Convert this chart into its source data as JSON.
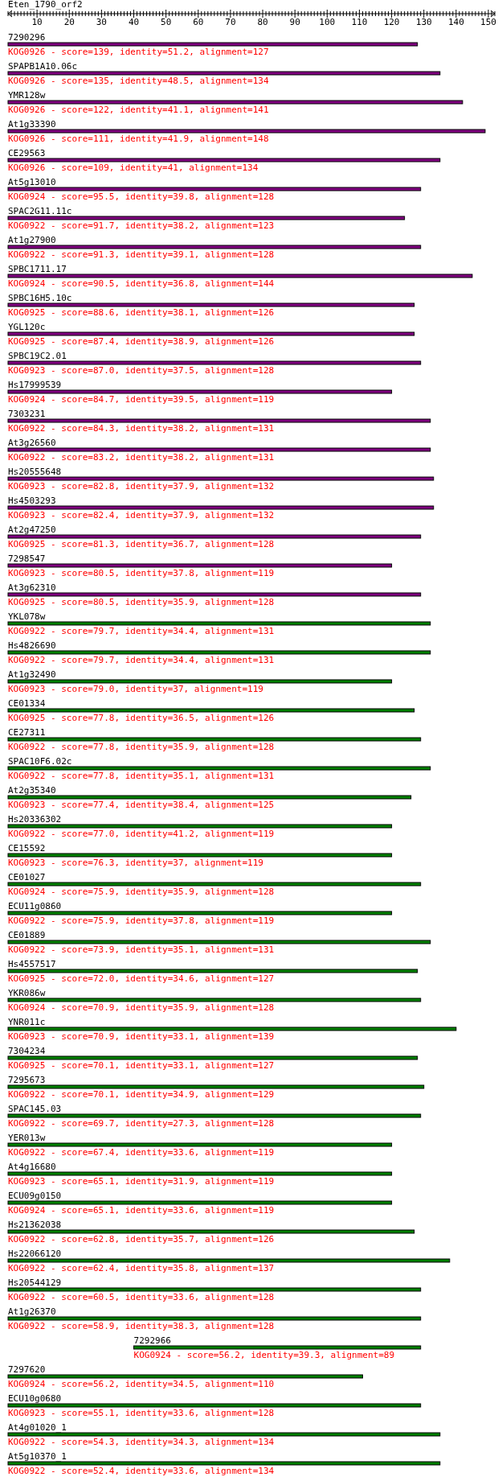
{
  "chart_data": {
    "type": "bar",
    "orientation": "horizontal",
    "title": "Eten_1790_orf2",
    "categories": [
      "7290296",
      "SPAPB1A10.06c",
      "YMR128w",
      "At1g33390",
      "CE29563",
      "At5g13010",
      "SPAC2G11.11c",
      "At1g27900",
      "SPBC1711.17",
      "SPBC16H5.10c",
      "YGL120c",
      "SPBC19C2.01",
      "Hs17999539",
      "7303231",
      "At3g26560",
      "Hs20555648",
      "Hs4503293",
      "At2g47250",
      "7298547",
      "At3g62310",
      "YKL078w",
      "Hs4826690",
      "At1g32490",
      "CE01334",
      "CE27311",
      "SPAC10F6.02c",
      "At2g35340",
      "Hs20336302",
      "CE15592",
      "CE01027",
      "ECU11g0860",
      "CE01889",
      "Hs4557517",
      "YKR086w",
      "YNR011c",
      "7304234",
      "7295673",
      "SPAC145.03",
      "YER013w",
      "At4g16680",
      "ECU09g0150",
      "Hs21362038",
      "Hs22066120",
      "Hs20544129",
      "At1g26370",
      "7292966",
      "7297620",
      "ECU10g0680",
      "At4g01020_1",
      "At5g10370_1"
    ],
    "base": [
      1,
      1,
      1,
      1,
      1,
      1,
      1,
      1,
      1,
      1,
      1,
      1,
      1,
      1,
      1,
      1,
      1,
      1,
      1,
      1,
      1,
      1,
      1,
      1,
      1,
      1,
      1,
      1,
      1,
      1,
      1,
      1,
      1,
      1,
      1,
      1,
      1,
      1,
      1,
      1,
      1,
      1,
      1,
      1,
      1,
      40,
      1,
      1,
      1,
      1
    ],
    "values": [
      127,
      134,
      141,
      148,
      134,
      128,
      123,
      128,
      144,
      126,
      126,
      128,
      119,
      131,
      131,
      132,
      132,
      128,
      119,
      128,
      131,
      131,
      119,
      126,
      128,
      131,
      125,
      119,
      119,
      128,
      119,
      131,
      127,
      128,
      139,
      127,
      129,
      128,
      119,
      119,
      119,
      126,
      137,
      128,
      128,
      89,
      110,
      128,
      134,
      134
    ],
    "colors": [
      "#800080",
      "#800080",
      "#800080",
      "#800080",
      "#800080",
      "#800080",
      "#800080",
      "#800080",
      "#800080",
      "#800080",
      "#800080",
      "#800080",
      "#800080",
      "#800080",
      "#800080",
      "#800080",
      "#800080",
      "#800080",
      "#800080",
      "#800080",
      "#008000",
      "#008000",
      "#008000",
      "#008000",
      "#008000",
      "#008000",
      "#008000",
      "#008000",
      "#008000",
      "#008000",
      "#008000",
      "#008000",
      "#008000",
      "#008000",
      "#008000",
      "#008000",
      "#008000",
      "#008000",
      "#008000",
      "#008000",
      "#008000",
      "#008000",
      "#008000",
      "#008000",
      "#008000",
      "#008000",
      "#008000",
      "#008000",
      "#008000",
      "#008000"
    ],
    "xlim": [
      1,
      152
    ],
    "xticks": [
      {
        "value": 1,
        "label": null
      },
      {
        "value": 2,
        "label": null
      },
      {
        "value": 3,
        "label": null
      },
      {
        "value": 4,
        "label": null
      },
      {
        "value": 5,
        "label": null
      },
      {
        "value": 6,
        "label": null
      },
      {
        "value": 7,
        "label": null
      },
      {
        "value": 8,
        "label": null
      },
      {
        "value": 9,
        "label": null
      },
      10,
      {
        "value": 11,
        "label": null
      },
      {
        "value": 12,
        "label": null
      },
      {
        "value": 13,
        "label": null
      },
      {
        "value": 14,
        "label": null
      },
      {
        "value": 15,
        "label": null
      },
      {
        "value": 16,
        "label": null
      },
      {
        "value": 17,
        "label": null
      },
      {
        "value": 18,
        "label": null
      },
      {
        "value": 19,
        "label": null
      },
      20,
      {
        "value": 21,
        "label": null
      },
      {
        "value": 22,
        "label": null
      },
      {
        "value": 23,
        "label": null
      },
      {
        "value": 24,
        "label": null
      },
      {
        "value": 25,
        "label": null
      },
      {
        "value": 26,
        "label": null
      },
      {
        "value": 27,
        "label": null
      },
      {
        "value": 28,
        "label": null
      },
      {
        "value": 29,
        "label": null
      },
      30,
      {
        "value": 31,
        "label": null
      },
      {
        "value": 32,
        "label": null
      },
      {
        "value": 33,
        "label": null
      },
      {
        "value": 34,
        "label": null
      },
      {
        "value": 35,
        "label": null
      },
      {
        "value": 36,
        "label": null
      },
      {
        "value": 37,
        "label": null
      },
      {
        "value": 38,
        "label": null
      },
      {
        "value": 39,
        "label": null
      },
      40,
      {
        "value": 41,
        "label": null
      },
      {
        "value": 42,
        "label": null
      },
      {
        "value": 43,
        "label": null
      },
      {
        "value": 44,
        "label": null
      },
      {
        "value": 45,
        "label": null
      },
      {
        "value": 46,
        "label": null
      },
      {
        "value": 47,
        "label": null
      },
      {
        "value": 48,
        "label": null
      },
      {
        "value": 49,
        "label": null
      },
      50,
      {
        "value": 51,
        "label": null
      },
      {
        "value": 52,
        "label": null
      },
      {
        "value": 53,
        "label": null
      },
      {
        "value": 54,
        "label": null
      },
      {
        "value": 55,
        "label": null
      },
      {
        "value": 56,
        "label": null
      },
      {
        "value": 57,
        "label": null
      },
      {
        "value": 58,
        "label": null
      },
      {
        "value": 59,
        "label": null
      },
      60,
      {
        "value": 61,
        "label": null
      },
      {
        "value": 62,
        "label": null
      },
      {
        "value": 63,
        "label": null
      },
      {
        "value": 64,
        "label": null
      },
      {
        "value": 65,
        "label": null
      },
      {
        "value": 66,
        "label": null
      },
      {
        "value": 67,
        "label": null
      },
      {
        "value": 68,
        "label": null
      },
      {
        "value": 69,
        "label": null
      },
      70,
      {
        "value": 71,
        "label": null
      },
      {
        "value": 72,
        "label": null
      },
      {
        "value": 73,
        "label": null
      },
      {
        "value": 74,
        "label": null
      },
      {
        "value": 75,
        "label": null
      },
      {
        "value": 76,
        "label": null
      },
      {
        "value": 77,
        "label": null
      },
      {
        "value": 78,
        "label": null
      },
      {
        "value": 79,
        "label": null
      },
      80,
      {
        "value": 81,
        "label": null
      },
      {
        "value": 82,
        "label": null
      },
      {
        "value": 83,
        "label": null
      },
      {
        "value": 84,
        "label": null
      },
      {
        "value": 85,
        "label": null
      },
      {
        "value": 86,
        "label": null
      },
      {
        "value": 87,
        "label": null
      },
      {
        "value": 88,
        "label": null
      },
      {
        "value": 89,
        "label": null
      },
      90,
      {
        "value": 91,
        "label": null
      },
      {
        "value": 92,
        "label": null
      },
      {
        "value": 93,
        "label": null
      },
      {
        "value": 94,
        "label": null
      },
      {
        "value": 95,
        "label": null
      },
      {
        "value": 96,
        "label": null
      },
      {
        "value": 97,
        "label": null
      },
      {
        "value": 98,
        "label": null
      },
      {
        "value": 99,
        "label": null
      },
      100,
      {
        "value": 101,
        "label": null
      },
      {
        "value": 102,
        "label": null
      },
      {
        "value": 103,
        "label": null
      },
      {
        "value": 104,
        "label": null
      },
      {
        "value": 105,
        "label": null
      },
      {
        "value": 106,
        "label": null
      },
      {
        "value": 107,
        "label": null
      },
      {
        "value": 108,
        "label": null
      },
      {
        "value": 109,
        "label": null
      },
      110,
      {
        "value": 111,
        "label": null
      },
      {
        "value": 112,
        "label": null
      },
      {
        "value": 113,
        "label": null
      },
      {
        "value": 114,
        "label": null
      },
      {
        "value": 115,
        "label": null
      },
      {
        "value": 116,
        "label": null
      },
      {
        "value": 117,
        "label": null
      },
      {
        "value": 118,
        "label": null
      },
      {
        "value": 119,
        "label": null
      },
      120,
      {
        "value": 121,
        "label": null
      },
      {
        "value": 122,
        "label": null
      },
      {
        "value": 123,
        "label": null
      },
      {
        "value": 124,
        "label": null
      },
      {
        "value": 125,
        "label": null
      },
      {
        "value": 126,
        "label": null
      },
      {
        "value": 127,
        "label": null
      },
      {
        "value": 128,
        "label": null
      },
      {
        "value": 129,
        "label": null
      },
      130,
      {
        "value": 131,
        "label": null
      },
      {
        "value": 132,
        "label": null
      },
      {
        "value": 133,
        "label": null
      },
      {
        "value": 134,
        "label": null
      },
      {
        "value": 135,
        "label": null
      },
      {
        "value": 136,
        "label": null
      },
      {
        "value": 137,
        "label": null
      },
      {
        "value": 138,
        "label": null
      },
      {
        "value": 139,
        "label": null
      },
      140,
      {
        "value": 141,
        "label": null
      },
      {
        "value": 142,
        "label": null
      },
      {
        "value": 143,
        "label": null
      },
      {
        "value": 144,
        "label": null
      },
      {
        "value": 145,
        "label": null
      },
      {
        "value": 146,
        "label": null
      },
      {
        "value": 147,
        "label": null
      },
      {
        "value": 148,
        "label": null
      },
      {
        "value": 149,
        "label": null
      },
      150,
      {
        "value": 151,
        "label": null
      },
      {
        "value": 152,
        "label": null
      }
    ],
    "annotations": [
      "KOG0926 - score=139, identity=51.2, alignment=127",
      "KOG0926 - score=135, identity=48.5, alignment=134",
      "KOG0926 - score=122, identity=41.1, alignment=141",
      "KOG0926 - score=111, identity=41.9, alignment=148",
      "KOG0926 - score=109, identity=41, alignment=134",
      "KOG0924 - score=95.5, identity=39.8, alignment=128",
      "KOG0922 - score=91.7, identity=38.2, alignment=123",
      "KOG0922 - score=91.3, identity=39.1, alignment=128",
      "KOG0924 - score=90.5, identity=36.8, alignment=144",
      "KOG0925 - score=88.6, identity=38.1, alignment=126",
      "KOG0925 - score=87.4, identity=38.9, alignment=126",
      "KOG0923 - score=87.0, identity=37.5, alignment=128",
      "KOG0924 - score=84.7, identity=39.5, alignment=119",
      "KOG0922 - score=84.3, identity=38.2, alignment=131",
      "KOG0922 - score=83.2, identity=38.2, alignment=131",
      "KOG0923 - score=82.8, identity=37.9, alignment=132",
      "KOG0923 - score=82.4, identity=37.9, alignment=132",
      "KOG0925 - score=81.3, identity=36.7, alignment=128",
      "KOG0923 - score=80.5, identity=37.8, alignment=119",
      "KOG0925 - score=80.5, identity=35.9, alignment=128",
      "KOG0922 - score=79.7, identity=34.4, alignment=131",
      "KOG0922 - score=79.7, identity=34.4, alignment=131",
      "KOG0923 - score=79.0, identity=37, alignment=119",
      "KOG0925 - score=77.8, identity=36.5, alignment=126",
      "KOG0922 - score=77.8, identity=35.9, alignment=128",
      "KOG0922 - score=77.8, identity=35.1, alignment=131",
      "KOG0923 - score=77.4, identity=38.4, alignment=125",
      "KOG0922 - score=77.0, identity=41.2, alignment=119",
      "KOG0923 - score=76.3, identity=37, alignment=119",
      "KOG0924 - score=75.9, identity=35.9, alignment=128",
      "KOG0922 - score=75.9, identity=37.8, alignment=119",
      "KOG0922 - score=73.9, identity=35.1, alignment=131",
      "KOG0925 - score=72.0, identity=34.6, alignment=127",
      "KOG0924 - score=70.9, identity=35.9, alignment=128",
      "KOG0923 - score=70.9, identity=33.1, alignment=139",
      "KOG0925 - score=70.1, identity=33.1, alignment=127",
      "KOG0922 - score=70.1, identity=34.9, alignment=129",
      "KOG0922 - score=69.7, identity=27.3, alignment=128",
      "KOG0922 - score=67.4, identity=33.6, alignment=119",
      "KOG0923 - score=65.1, identity=31.9, alignment=119",
      "KOG0924 - score=65.1, identity=33.6, alignment=119",
      "KOG0922 - score=62.8, identity=35.7, alignment=126",
      "KOG0922 - score=62.4, identity=35.8, alignment=137",
      "KOG0922 - score=60.5, identity=33.6, alignment=128",
      "KOG0922 - score=58.9, identity=38.3, alignment=128",
      "KOG0924 - score=56.2, identity=39.3, alignment=89",
      "KOG0924 - score=56.2, identity=34.5, alignment=110",
      "KOG0923 - score=55.1, identity=33.6, alignment=128",
      "KOG0922 - score=54.3, identity=34.3, alignment=134",
      "KOG0922 - score=52.4, identity=33.6, alignment=134"
    ]
  }
}
